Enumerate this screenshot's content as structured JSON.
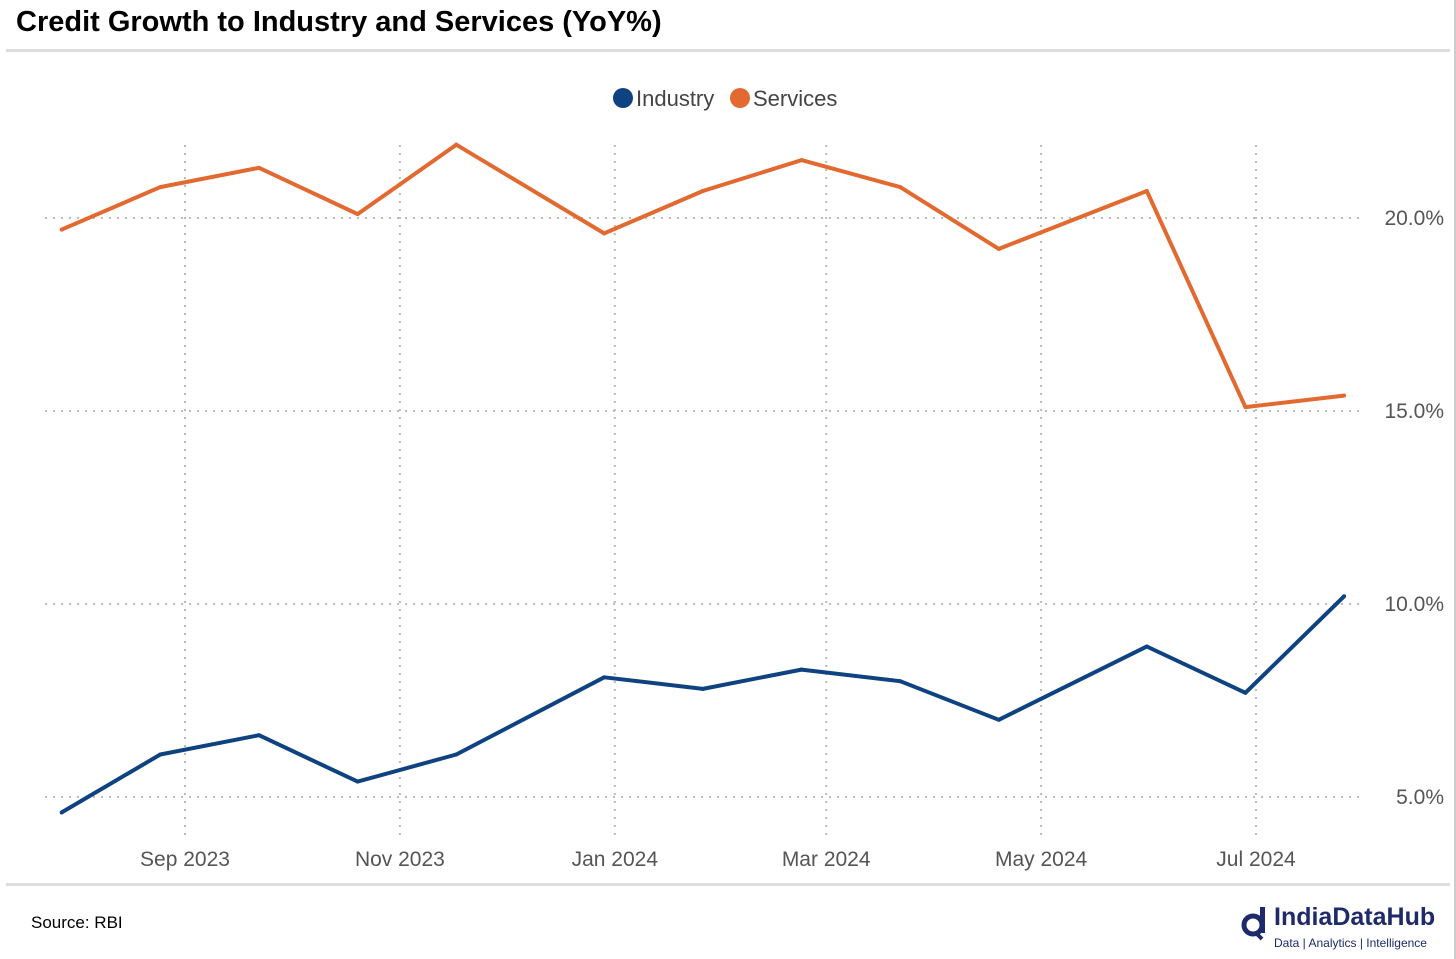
{
  "chart_data": {
    "type": "line",
    "title": "Credit Growth to Industry and Services (YoY%)",
    "xlabel": "",
    "ylabel": "",
    "x": [
      "2023-07-28",
      "2023-08-25",
      "2023-09-22",
      "2023-10-20",
      "2023-11-17",
      "2023-12-29",
      "2024-01-26",
      "2024-02-23",
      "2024-03-22",
      "2024-04-19",
      "2024-05-31",
      "2024-06-28",
      "2024-07-26"
    ],
    "series": [
      {
        "name": "Industry",
        "color": "#0f4280",
        "values": [
          4.6,
          6.1,
          6.6,
          5.4,
          6.1,
          8.1,
          7.8,
          8.3,
          8.0,
          7.0,
          8.9,
          7.7,
          10.2
        ]
      },
      {
        "name": "Services",
        "color": "#e2692f",
        "values": [
          19.7,
          20.8,
          21.3,
          20.1,
          21.9,
          19.6,
          20.7,
          21.5,
          20.8,
          19.2,
          20.7,
          15.1,
          15.4
        ]
      }
    ],
    "ylim": [
      4.0,
      22.5
    ],
    "yticks": [
      5,
      10,
      15,
      20
    ],
    "ytick_labels": [
      "5.0%",
      "10.0%",
      "15.0%",
      "20.0%"
    ],
    "xticks": [
      "2023-09-01",
      "2023-11-01",
      "2024-01-01",
      "2024-03-01",
      "2024-05-01",
      "2024-07-01"
    ],
    "xtick_labels": [
      "Sep 2023",
      "Nov 2023",
      "Jan 2024",
      "Mar 2024",
      "May 2024",
      "Jul 2024"
    ],
    "grid": true,
    "legend": "top-center",
    "source": "Source: RBI"
  },
  "logo": {
    "name": "IndiaDataHub",
    "tagline": "Data | Analytics | Intelligence"
  }
}
